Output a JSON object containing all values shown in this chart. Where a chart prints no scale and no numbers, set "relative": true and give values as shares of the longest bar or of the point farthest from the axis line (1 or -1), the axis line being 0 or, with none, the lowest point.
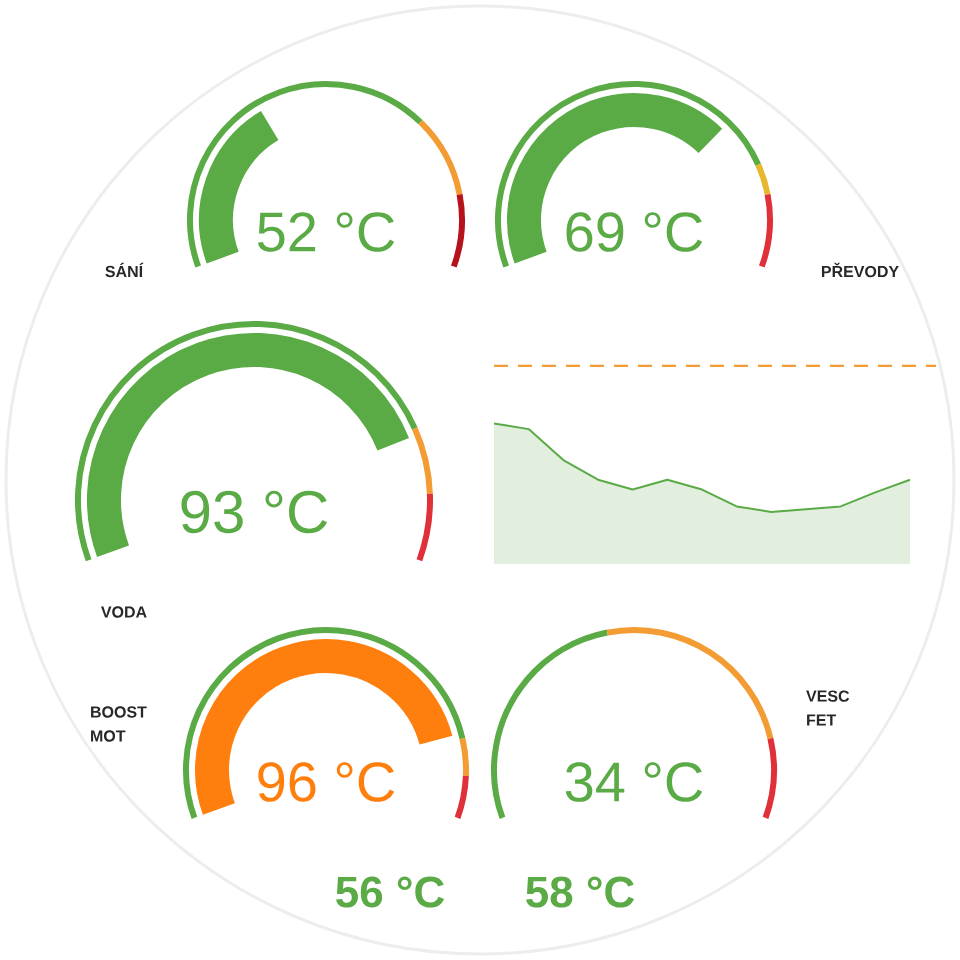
{
  "chart_data": [
    {
      "type": "other",
      "title": "SÁNÍ",
      "annotations": [
        "52 °C"
      ],
      "color": "#5aaa46"
    },
    {
      "type": "other",
      "title": "PŘEVODY",
      "annotations": [
        "69 °C"
      ],
      "color": "#5aaa46"
    },
    {
      "type": "other",
      "title": "VODA",
      "annotations": [
        "93 °C"
      ],
      "color": "#5aaa46"
    },
    {
      "type": "area",
      "relative": true,
      "categories": [
        null,
        null,
        null,
        null,
        null,
        null,
        null,
        null,
        null,
        null,
        null,
        null,
        null
      ],
      "values": [
        1.0,
        0.96,
        0.74,
        0.6,
        0.53,
        0.6,
        0.53,
        0.41,
        0.37,
        0.39,
        0.41,
        0.51,
        0.6
      ],
      "color": "#5aaa46",
      "ref_lines": [
        {
          "axis": "y",
          "value": 1.41,
          "color": "#f39c33",
          "line_style": "dashed"
        }
      ]
    },
    {
      "type": "other",
      "title": "BOOST MOT",
      "annotations": [
        "96 °C"
      ],
      "color": "#ff7f0e"
    },
    {
      "type": "other",
      "title": "VESC FET",
      "annotations": [
        "34 °C"
      ],
      "color": "#5aaa46"
    },
    {
      "type": "other",
      "annotations": [
        "56 °C"
      ],
      "color": "#5aaa46"
    },
    {
      "type": "other",
      "annotations": [
        "58 °C"
      ],
      "color": "#5aaa46"
    }
  ]
}
